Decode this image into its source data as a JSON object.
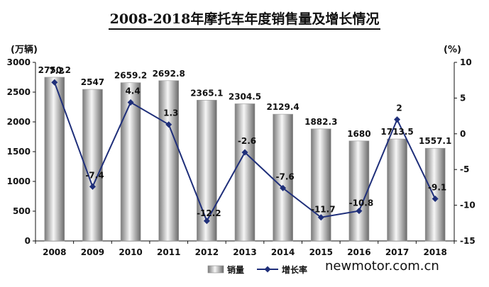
{
  "chart_data": {
    "type": "bar",
    "title": "2008-2018年摩托车年度销售量及增长情况",
    "categories": [
      "2008",
      "2009",
      "2010",
      "2011",
      "2012",
      "2013",
      "2014",
      "2015",
      "2016",
      "2017",
      "2018"
    ],
    "series": [
      {
        "name": "销量",
        "type": "bar",
        "axis": "left",
        "values": [
          2750.2,
          2547,
          2659.2,
          2692.8,
          2365.1,
          2304.5,
          2129.4,
          1882.3,
          1680,
          1713.5,
          1557.1
        ],
        "labels": [
          "2750.2",
          "2547",
          "2659.2",
          "2692.8",
          "2365.1",
          "2304.5",
          "2129.4",
          "1882.3",
          "1680",
          "1713.5",
          "1557.1"
        ]
      },
      {
        "name": "增长率",
        "type": "line",
        "axis": "right",
        "values": [
          7.2,
          -7.4,
          4.4,
          1.3,
          -12.2,
          -2.6,
          -7.6,
          -11.7,
          -10.8,
          2,
          -9.1
        ],
        "labels": [
          "7.2",
          "-7.4",
          "4.4",
          "1.3",
          "-12.2",
          "-2.6",
          "-7.6",
          "-11.7",
          "-10.8",
          "2",
          "-9.1"
        ]
      }
    ],
    "ylabel_left": "(万辆)",
    "ylabel_right": "(%)",
    "ylim_left": [
      0,
      3000
    ],
    "yticks_left": [
      "0",
      "500",
      "1000",
      "1500",
      "2000",
      "2500",
      "3000"
    ],
    "ylim_right": [
      -15,
      10
    ],
    "yticks_right": [
      "-15",
      "-10",
      "-5",
      "0",
      "5",
      "10"
    ],
    "grid": false,
    "legend_position": "bottom-center",
    "colors": {
      "bar_dark": "#6e6e6e",
      "bar_light": "#f4f4f4",
      "line": "#1f2f7a"
    }
  },
  "watermark": "newmotor.com.cn"
}
